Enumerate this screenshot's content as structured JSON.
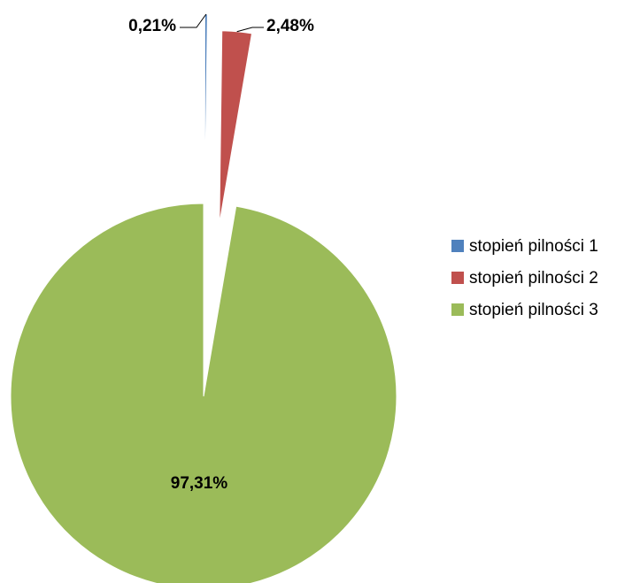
{
  "chart_data": {
    "type": "pie",
    "title": "",
    "labels": [
      "stopień pilności 1",
      "stopień pilności 2",
      "stopień pilności 3"
    ],
    "values": [
      0.21,
      2.48,
      97.31
    ],
    "data_labels": [
      "0,21%",
      "2,48%",
      "97,31%"
    ],
    "colors": [
      "#4F81BD",
      "#C0504D",
      "#9BBB59"
    ],
    "exploded": true,
    "legend_position": "right"
  }
}
